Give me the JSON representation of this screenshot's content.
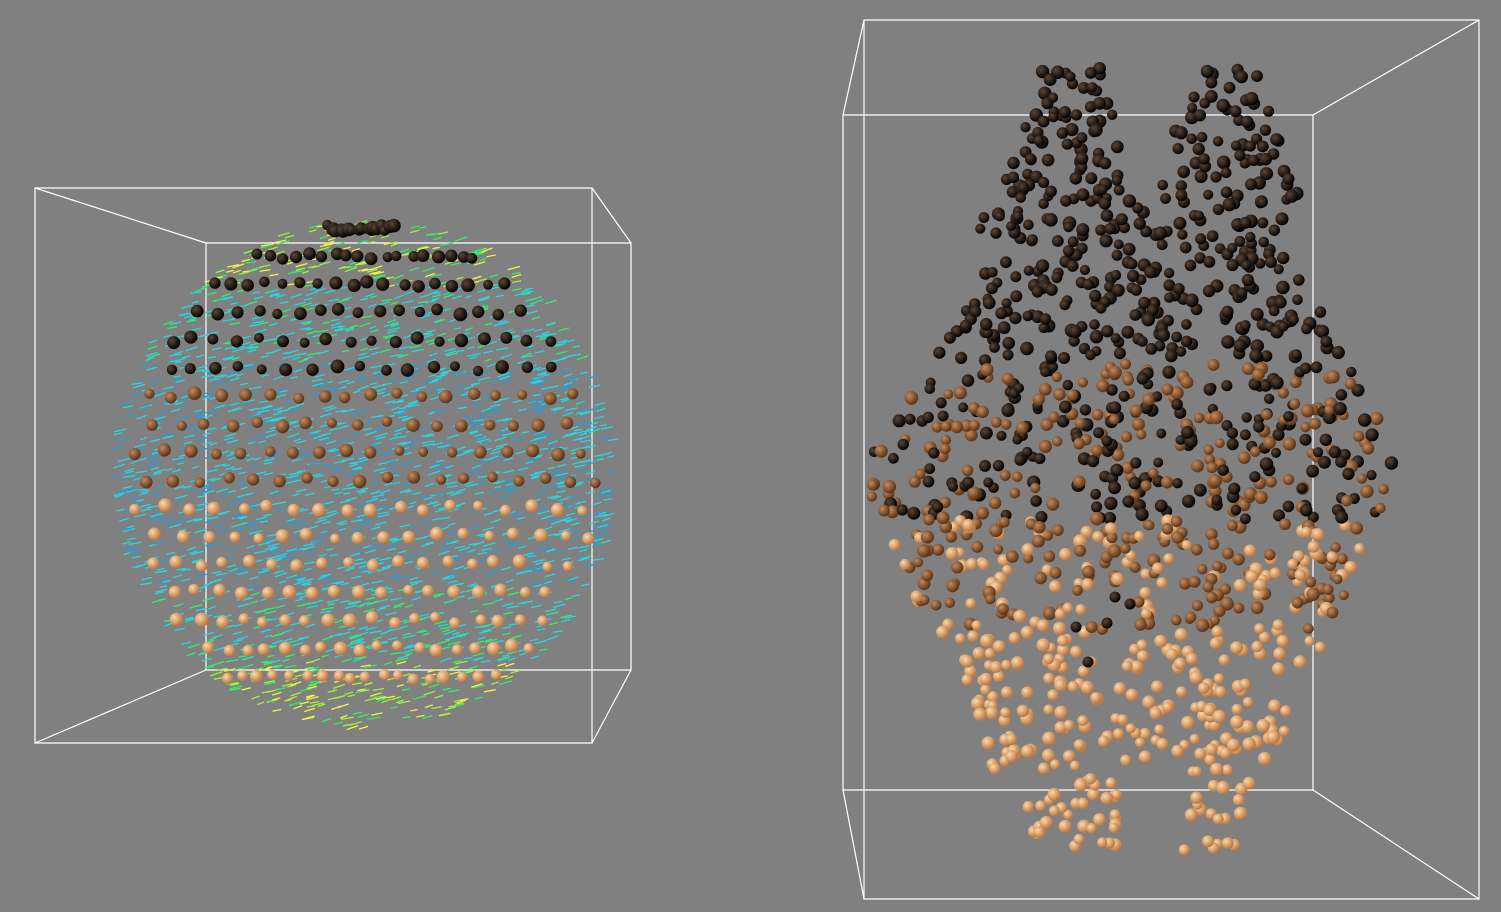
{
  "scene": {
    "background": "#808080",
    "box_color": "#ffffff",
    "colors": {
      "sphere_dark": "#0b0705",
      "sphere_mid": "#7a4a2a",
      "sphere_light": "#f2b27a",
      "arrow_cyan": "#22d8e6",
      "arrow_green": "#2cf06a",
      "arrow_yellow": "#f4f43a",
      "arrow_blue": "#2a9ad8"
    }
  },
  "left_view": {
    "description_icon": "sphere-vector-field",
    "shape": "sphere"
  },
  "right_view": {
    "description_icon": "point-cloud",
    "shape": "blob"
  }
}
